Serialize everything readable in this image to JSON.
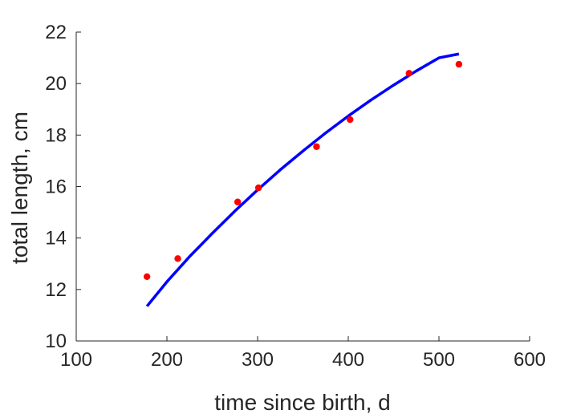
{
  "chart_data": {
    "type": "scatter",
    "title": "",
    "xlabel": "time since birth, d",
    "ylabel": "total length, cm",
    "xlim": [
      100,
      600
    ],
    "ylim": [
      10,
      22
    ],
    "xticks": [
      100,
      200,
      300,
      400,
      500,
      600
    ],
    "yticks": [
      10,
      12,
      14,
      16,
      18,
      20,
      22
    ],
    "grid": false,
    "legend": "none",
    "series": [
      {
        "kind": "points",
        "color": "#ff0000",
        "x": [
          178,
          212,
          278,
          301,
          365,
          402,
          467,
          522
        ],
        "y": [
          12.5,
          13.2,
          15.4,
          15.95,
          17.55,
          18.6,
          20.4,
          20.75
        ]
      },
      {
        "kind": "line",
        "color": "#0000ff",
        "x": [
          178,
          200,
          225,
          250,
          275,
          300,
          325,
          350,
          375,
          400,
          425,
          450,
          475,
          500,
          522
        ],
        "y": [
          11.35,
          12.3,
          13.28,
          14.18,
          15.05,
          15.87,
          16.65,
          17.38,
          18.08,
          18.74,
          19.36,
          19.94,
          20.49,
          21.0,
          21.15
        ]
      }
    ]
  }
}
